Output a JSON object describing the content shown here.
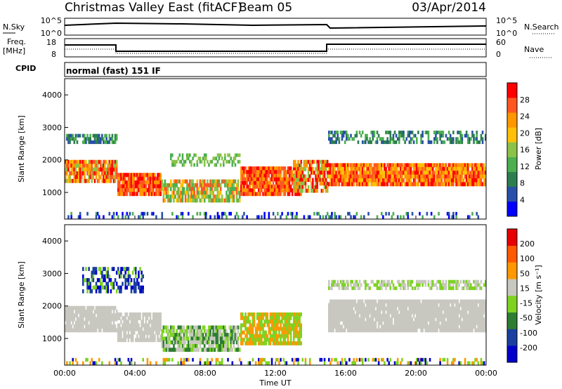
{
  "header": {
    "title": "Christmas Valley East (fitACF)",
    "beam": "Beam 05",
    "date": "03/Apr/2014"
  },
  "panels": {
    "nsky": {
      "left_label": "N.Sky",
      "right_label": "N.Search",
      "left_ticks": [
        "10^5",
        "10^0"
      ],
      "right_ticks": [
        "10^5",
        "10^0"
      ]
    },
    "freq": {
      "left_label_1": "Freq.",
      "left_label_2": "[MHz]",
      "right_label": "Nave",
      "left_ticks": [
        "18",
        "8"
      ],
      "right_ticks": [
        "60",
        "0"
      ]
    },
    "cpid": {
      "label": "CPID",
      "value": "normal (fast) 151 IF"
    }
  },
  "chart_data": [
    {
      "type": "heatmap",
      "name": "power",
      "ylabel": "Slant Range [km]",
      "yticks": [
        "4000",
        "3000",
        "2000",
        "1000"
      ],
      "ylim": [
        180,
        4500
      ],
      "colorbar": {
        "label": "Power [dB]",
        "ticks": [
          "28",
          "24",
          "20",
          "16",
          "12",
          "8",
          "4"
        ],
        "colors": [
          "#0000ff",
          "#2850a8",
          "#2e7d4f",
          "#4caf50",
          "#8bc34a",
          "#ffc107",
          "#ff9800",
          "#ff5722",
          "#ff0000"
        ]
      }
    },
    {
      "type": "heatmap",
      "name": "velocity",
      "ylabel": "Slant Range [km]",
      "yticks": [
        "4000",
        "3000",
        "2000",
        "1000"
      ],
      "ylim": [
        180,
        4500
      ],
      "colorbar": {
        "label": "Velocity [m s⁻¹]",
        "ticks": [
          "200",
          "100",
          "50",
          "15",
          "-15",
          "-50",
          "-100",
          "-200"
        ],
        "colors": [
          "#0000cc",
          "#1a3fa0",
          "#2e7d32",
          "#7ed321",
          "#c8c8c0",
          "#ff9800",
          "#ff5a00",
          "#e60000"
        ]
      }
    }
  ],
  "xaxis": {
    "label": "Time UT",
    "ticks": [
      "00:00",
      "04:00",
      "08:00",
      "12:00",
      "16:00",
      "20:00",
      "00:00"
    ]
  },
  "colors": {
    "ground_scatter": "#c8c8c0"
  }
}
